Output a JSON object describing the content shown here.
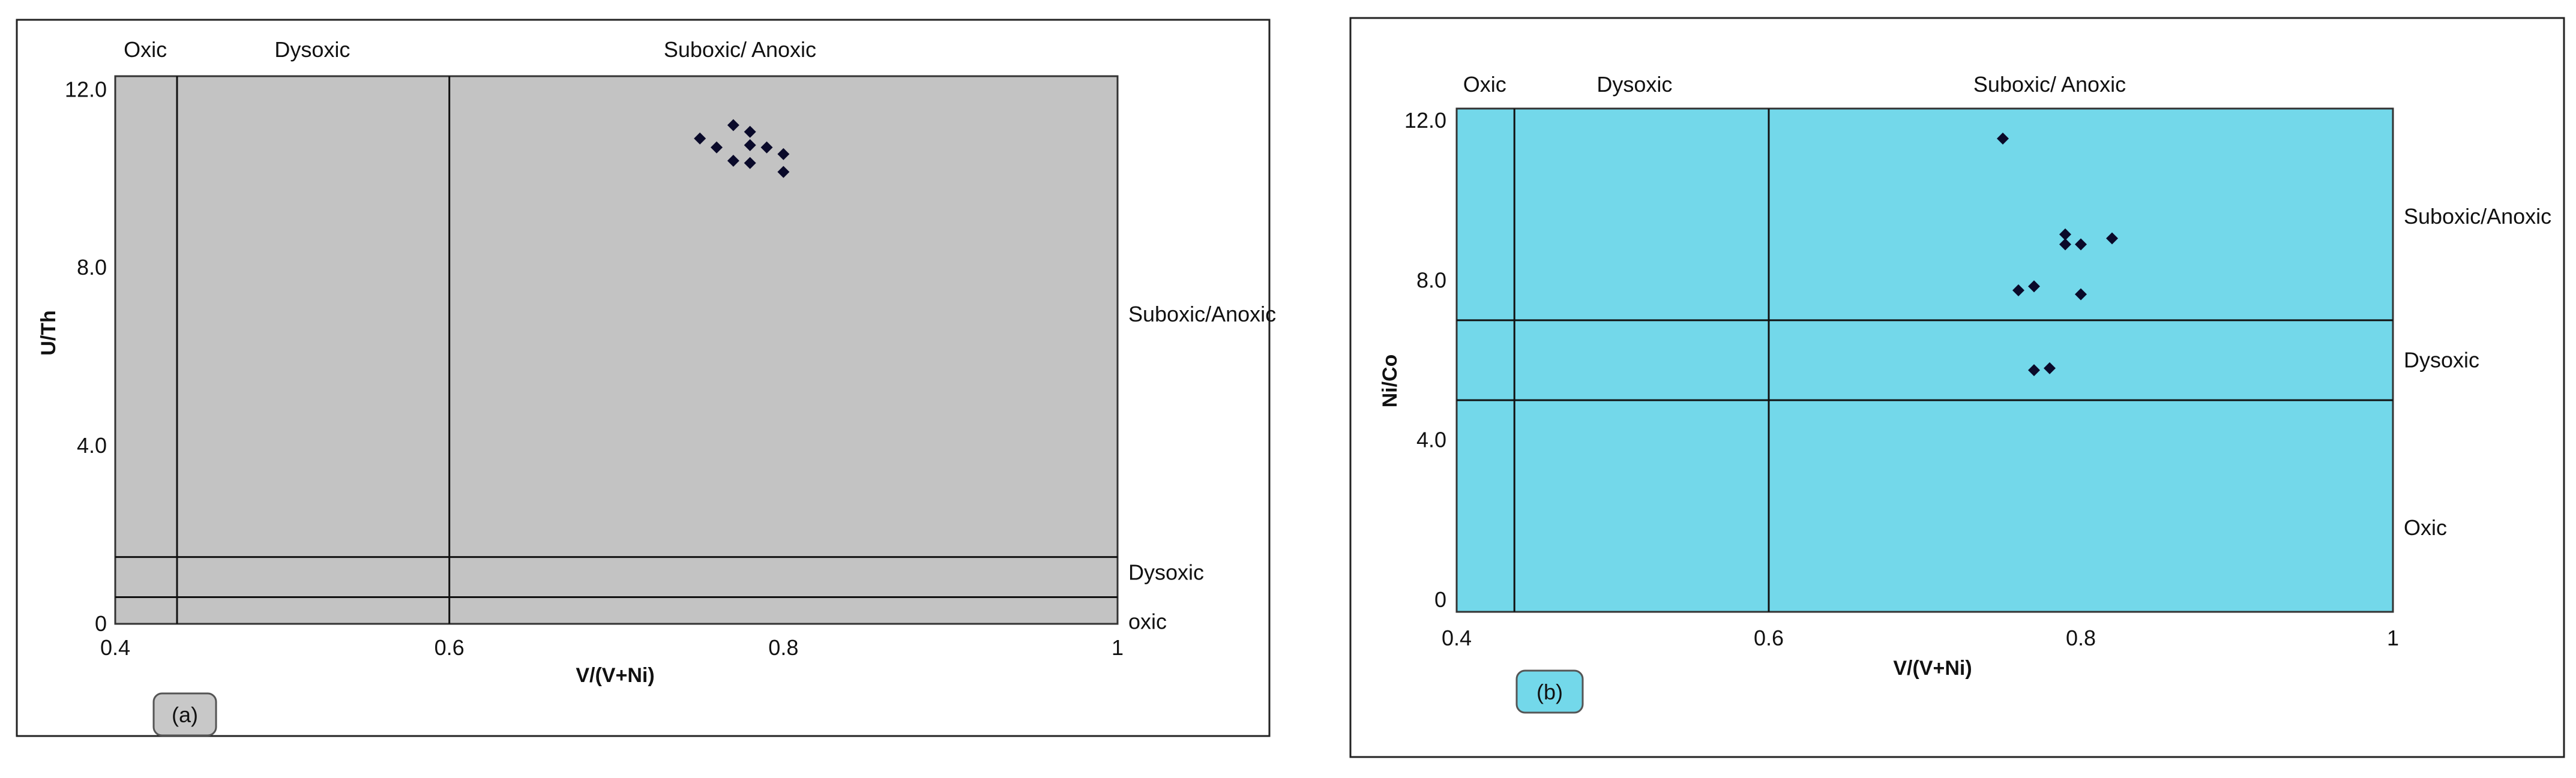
{
  "chart_data": [
    {
      "type": "scatter",
      "badge": "(a)",
      "xlabel": "V/(V+Ni)",
      "ylabel": "U/Th",
      "xlim": [
        0.4,
        1.0
      ],
      "ylim": [
        0,
        12.3
      ],
      "x_ticks": [
        {
          "v": 0.4,
          "label": "0.4"
        },
        {
          "v": 0.6,
          "label": "0.6"
        },
        {
          "v": 0.8,
          "label": "0.8"
        },
        {
          "v": 1.0,
          "label": "1"
        }
      ],
      "y_ticks": [
        {
          "v": 0,
          "label": "0"
        },
        {
          "v": 4,
          "label": "4.0"
        },
        {
          "v": 8,
          "label": "8.0"
        },
        {
          "v": 12,
          "label": "12.0"
        }
      ],
      "x_dividers": [
        0.437,
        0.6
      ],
      "y_dividers": [
        0.6,
        1.5
      ],
      "top_zones": [
        {
          "label": "Oxic",
          "x": 0.418
        },
        {
          "label": "Dysoxic",
          "x": 0.518
        },
        {
          "label": "Suboxic/ Anoxic",
          "x": 0.774
        }
      ],
      "side_zones": [
        {
          "label": "Suboxic/Anoxic",
          "y": 6.95
        },
        {
          "label": "Dysoxic",
          "y": 1.15
        },
        {
          "label": "oxic",
          "y": 0.05
        }
      ],
      "plot_color": "#c3c3c3",
      "badge_color": "#c8c8c8",
      "points": [
        {
          "x": 0.75,
          "y": 10.9
        },
        {
          "x": 0.76,
          "y": 10.7
        },
        {
          "x": 0.77,
          "y": 11.2
        },
        {
          "x": 0.78,
          "y": 11.05
        },
        {
          "x": 0.78,
          "y": 10.75
        },
        {
          "x": 0.79,
          "y": 10.7
        },
        {
          "x": 0.8,
          "y": 10.55
        },
        {
          "x": 0.77,
          "y": 10.4
        },
        {
          "x": 0.78,
          "y": 10.35
        },
        {
          "x": 0.8,
          "y": 10.15
        }
      ]
    },
    {
      "type": "scatter",
      "badge": "(b)",
      "xlabel": "V/(V+Ni)",
      "ylabel": "Ni/Co",
      "xlim": [
        0.4,
        1.0
      ],
      "ylim": [
        -0.3,
        12.3
      ],
      "x_ticks": [
        {
          "v": 0.4,
          "label": "0.4"
        },
        {
          "v": 0.6,
          "label": "0.6"
        },
        {
          "v": 0.8,
          "label": "0.8"
        },
        {
          "v": 1.0,
          "label": "1"
        }
      ],
      "y_ticks": [
        {
          "v": 0,
          "label": "0"
        },
        {
          "v": 4,
          "label": "4.0"
        },
        {
          "v": 8,
          "label": "8.0"
        },
        {
          "v": 12,
          "label": "12.0"
        }
      ],
      "x_dividers": [
        0.437,
        0.6
      ],
      "y_dividers": [
        5,
        7
      ],
      "top_zones": [
        {
          "label": "Oxic",
          "x": 0.418
        },
        {
          "label": "Dysoxic",
          "x": 0.514
        },
        {
          "label": "Suboxic/ Anoxic",
          "x": 0.78
        }
      ],
      "side_zones": [
        {
          "label": "Suboxic/Anoxic",
          "y": 9.6
        },
        {
          "label": "Dysoxic",
          "y": 6.0
        },
        {
          "label": "Oxic",
          "y": 1.8
        }
      ],
      "plot_color": "#73d8ea",
      "badge_color": "#73d8ea",
      "points": [
        {
          "x": 0.75,
          "y": 11.55
        },
        {
          "x": 0.79,
          "y": 9.15
        },
        {
          "x": 0.79,
          "y": 8.9
        },
        {
          "x": 0.8,
          "y": 8.9
        },
        {
          "x": 0.82,
          "y": 9.05
        },
        {
          "x": 0.76,
          "y": 7.75
        },
        {
          "x": 0.77,
          "y": 7.85
        },
        {
          "x": 0.8,
          "y": 7.65
        },
        {
          "x": 0.77,
          "y": 5.75
        },
        {
          "x": 0.78,
          "y": 5.8
        }
      ]
    }
  ]
}
